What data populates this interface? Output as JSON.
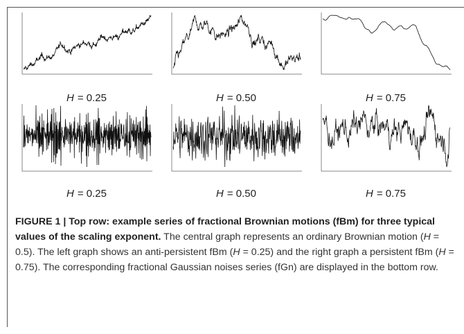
{
  "figure": {
    "panels": [
      {
        "symbol": "H",
        "value": "= 0.25"
      },
      {
        "symbol": "H",
        "value": "= 0.50"
      },
      {
        "symbol": "H",
        "value": "= 0.75"
      },
      {
        "symbol": "H",
        "value": "= 0.25"
      },
      {
        "symbol": "H",
        "value": "= 0.50"
      },
      {
        "symbol": "H",
        "value": "= 0.75"
      }
    ],
    "caption": [
      {
        "text": "FIGURE 1 | Top row: example series of fractional Brownian motions (fBm) for three typical values of the scaling exponent.",
        "style": "bold"
      },
      {
        "text": " The central graph represents an ordinary Brownian motion (",
        "style": "normal"
      },
      {
        "text": "H",
        "style": "italic"
      },
      {
        "text": " = 0.5). The left graph shows an anti-persistent fBm (",
        "style": "normal"
      },
      {
        "text": "H",
        "style": "italic"
      },
      {
        "text": " = 0.25) and the right graph a persistent fBm (",
        "style": "normal"
      },
      {
        "text": "H",
        "style": "italic"
      },
      {
        "text": " = 0.75). The corresponding fractional Gaussian noises series (fGn) are displayed in the bottom row.",
        "style": "normal"
      }
    ]
  }
}
